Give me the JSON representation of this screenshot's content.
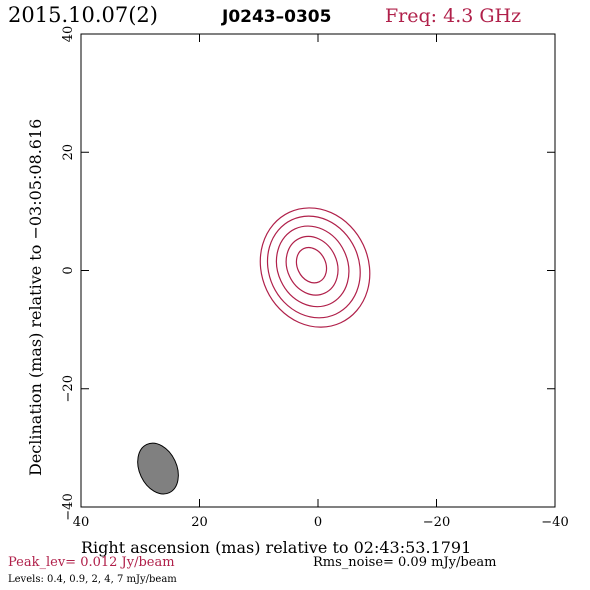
{
  "header": {
    "date": "2015.10.07(2)",
    "source": "J0243–0305",
    "freq": "Freq: 4.3 GHz"
  },
  "footer": {
    "peak": "Peak_lev=  0.012 Jy/beam",
    "rms": "Rms_noise= 0.09 mJy/beam",
    "levels": "Levels: 0.4,  0.9,    2,    4,    7 mJy/beam"
  },
  "colors": {
    "contour": "#b0204a",
    "accent": "#b0204a",
    "beam_fill": "#808080",
    "axes": "#000000"
  },
  "chart_data": {
    "type": "contour",
    "xlabel": "Right ascension (mas) relative to 02:43:53.1791",
    "ylabel": "Declination (mas) relative to −03:05:08.616",
    "xlim": [
      40,
      -40
    ],
    "ylim": [
      -40,
      40
    ],
    "xticks": [
      40,
      20,
      0,
      -20,
      -40
    ],
    "yticks": [
      -40,
      -20,
      0,
      20,
      40
    ],
    "xtick_labels": [
      "40",
      "20",
      "0",
      "−20",
      "−40"
    ],
    "ytick_labels": [
      "−40",
      "−20",
      "0",
      "20",
      "40"
    ],
    "grid": false,
    "levels_mJy_per_beam": [
      0.4,
      0.9,
      2,
      4,
      7
    ],
    "contours": [
      {
        "level": 0.4,
        "center": [
          0.5,
          0.5
        ],
        "semi_major_mas": 10.3,
        "semi_minor_mas": 9.0,
        "pa_deg": -25
      },
      {
        "level": 0.9,
        "center": [
          0.7,
          0.6
        ],
        "semi_major_mas": 8.8,
        "semi_minor_mas": 7.6,
        "pa_deg": -25
      },
      {
        "level": 2,
        "center": [
          0.9,
          0.7
        ],
        "semi_major_mas": 7.0,
        "semi_minor_mas": 5.9,
        "pa_deg": -25
      },
      {
        "level": 4,
        "center": [
          1.0,
          0.8
        ],
        "semi_major_mas": 5.1,
        "semi_minor_mas": 4.2,
        "pa_deg": -25
      },
      {
        "level": 7,
        "center": [
          1.1,
          0.9
        ],
        "semi_major_mas": 3.1,
        "semi_minor_mas": 2.4,
        "pa_deg": -25
      }
    ],
    "beam": {
      "center": [
        27.0,
        -33.5
      ],
      "major_mas": 9.0,
      "minor_mas": 6.3,
      "pa_deg": -25
    }
  }
}
